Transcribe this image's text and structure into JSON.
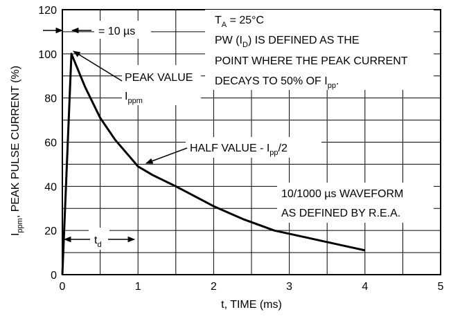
{
  "chart_data": {
    "type": "line",
    "xlabel": "t, TIME (ms)",
    "ylabel": {
      "main": "I",
      "sub": "ppm",
      "rest": ", PEAK PULSE CURRENT (%)"
    },
    "xlim": [
      0,
      5
    ],
    "ylim": [
      0,
      120
    ],
    "x_ticks": [
      0,
      1,
      2,
      3,
      4,
      5
    ],
    "y_ticks": [
      0,
      20,
      40,
      60,
      80,
      100,
      120
    ],
    "grid": true,
    "x_minor_step": 0.5,
    "y_minor_step": 10,
    "series": [
      {
        "x": [
          0,
          0.12,
          0.3,
          0.5,
          0.7,
          0.9,
          1.0,
          1.2,
          1.5,
          2.0,
          2.4,
          2.8,
          3.2,
          3.6,
          4.0
        ],
        "y": [
          0,
          100,
          85,
          71,
          61,
          53,
          49,
          45,
          40,
          31,
          25,
          20,
          17,
          14,
          11
        ]
      }
    ],
    "annotations": {
      "pulse_width": "= 10 µs",
      "peak_value": "PEAK VALUE",
      "peak_symbol": {
        "main": "I",
        "sub": "ppm"
      },
      "half_value": {
        "main": "HALF VALUE - I",
        "sub": "pp",
        "rest": "/2"
      },
      "conditions": {
        "line1": {
          "main": "T",
          "sub": "A",
          "rest": " = 25°C"
        },
        "line2": {
          "main": "PW (I",
          "sub": "D",
          "rest": ") IS DEFINED AS THE"
        },
        "line3": "POINT WHERE THE PEAK CURRENT",
        "line4": {
          "main": "DECAYS TO 50% OF I",
          "sub": "pp",
          "rest": "."
        }
      },
      "waveform_line1": "10/1000 µs WAVEFORM",
      "waveform_line2": "AS DEFINED BY R.E.A.",
      "td_label": {
        "main": "t",
        "sub": "d"
      }
    }
  }
}
